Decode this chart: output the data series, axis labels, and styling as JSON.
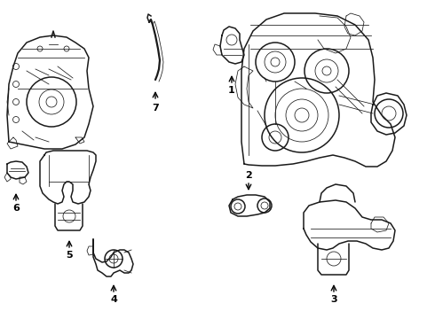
{
  "bg_color": "#ffffff",
  "line_color": "#1a1a1a",
  "label_color": "#000000",
  "figsize": [
    4.9,
    3.6
  ],
  "dpi": 100,
  "lw_main": 1.1,
  "lw_thin": 0.55,
  "lw_thick": 1.5
}
